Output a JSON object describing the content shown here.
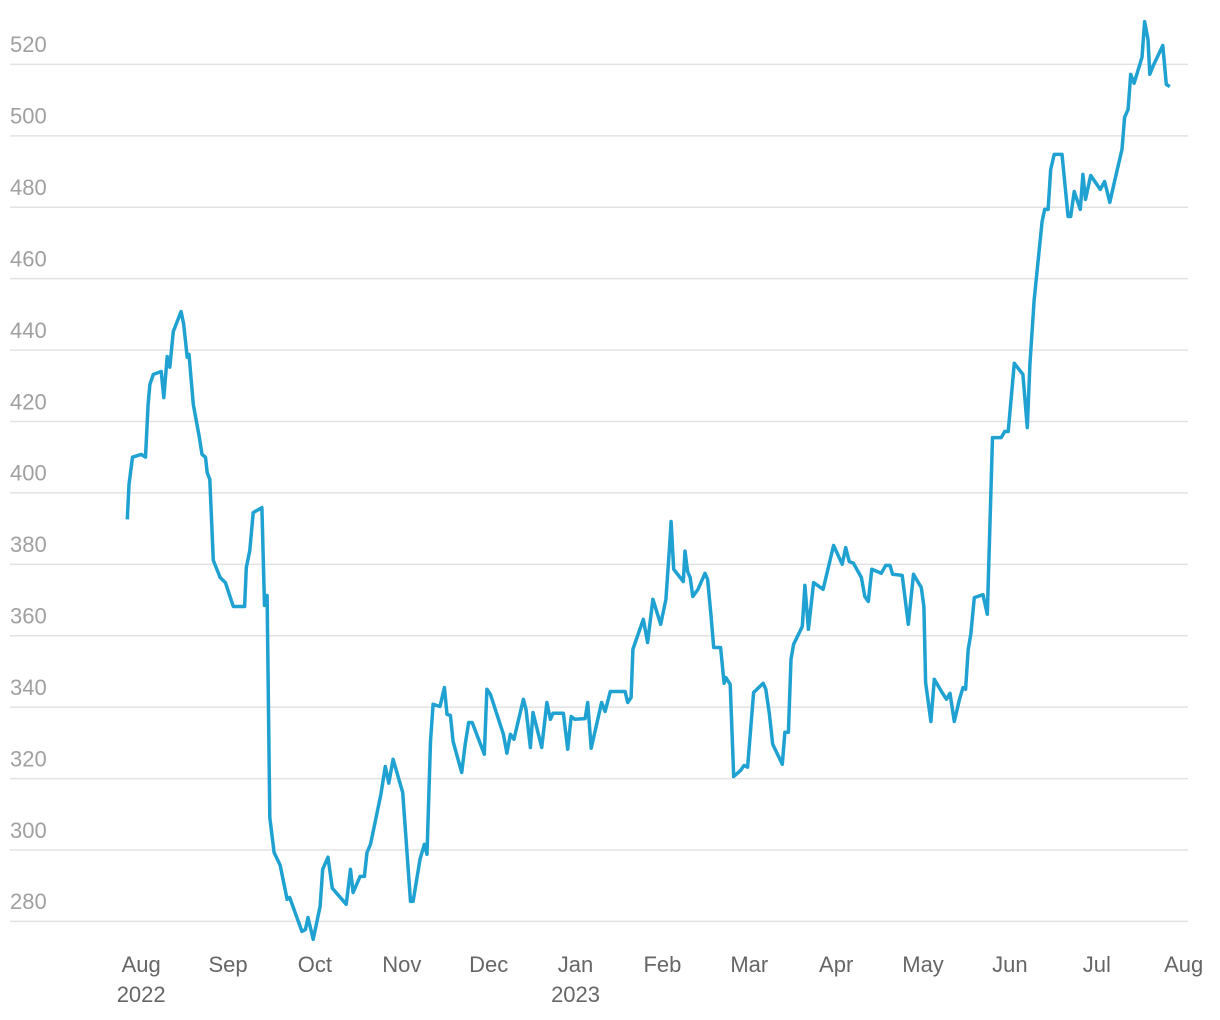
{
  "chart_data": {
    "type": "line",
    "x": [
      -0.16,
      -0.14,
      -0.1,
      0,
      0.05,
      0.08,
      0.1,
      0.14,
      0.23,
      0.26,
      0.3,
      0.33,
      0.37,
      0.46,
      0.49,
      0.53,
      0.55,
      0.6,
      0.67,
      0.7,
      0.74,
      0.76,
      0.79,
      0.83,
      0.91,
      0.97,
      1.06,
      1.19,
      1.21,
      1.25,
      1.29,
      1.39,
      1.42,
      1.45,
      1.48,
      1.53,
      1.6,
      1.68,
      1.71,
      1.85,
      1.89,
      1.92,
      1.98,
      2.06,
      2.09,
      2.15,
      2.2,
      2.31,
      2.36,
      2.41,
      2.44,
      2.52,
      2.57,
      2.6,
      2.64,
      2.68,
      2.76,
      2.81,
      2.85,
      2.9,
      3.01,
      3.1,
      3.13,
      3.21,
      3.26,
      3.29,
      3.33,
      3.36,
      3.44,
      3.49,
      3.52,
      3.56,
      3.59,
      3.69,
      3.73,
      3.77,
      3.81,
      3.95,
      3.98,
      4.02,
      4.17,
      4.21,
      4.25,
      4.29,
      4.4,
      4.43,
      4.48,
      4.51,
      4.61,
      4.67,
      4.71,
      4.74,
      4.86,
      4.91,
      4.95,
      4.99,
      5.11,
      5.14,
      5.18,
      5.3,
      5.34,
      5.4,
      5.57,
      5.6,
      5.64,
      5.66,
      5.78,
      5.83,
      5.89,
      5.98,
      6.04,
      6.08,
      6.1,
      6.13,
      6.24,
      6.26,
      6.29,
      6.32,
      6.35,
      6.41,
      6.49,
      6.52,
      6.56,
      6.59,
      6.67,
      6.71,
      6.73,
      6.78,
      6.82,
      6.9,
      6.94,
      6.98,
      7.05,
      7.16,
      7.19,
      7.23,
      7.27,
      7.38,
      7.41,
      7.45,
      7.48,
      7.51,
      7.61,
      7.64,
      7.68,
      7.74,
      7.85,
      7.91,
      7.97,
      8.07,
      8.11,
      8.15,
      8.2,
      8.29,
      8.33,
      8.37,
      8.41,
      8.52,
      8.57,
      8.62,
      8.65,
      8.76,
      8.83,
      8.89,
      8.98,
      9.01,
      9.03,
      9.09,
      9.13,
      9.22,
      9.27,
      9.31,
      9.36,
      9.42,
      9.46,
      9.49,
      9.52,
      9.55,
      9.59,
      9.69,
      9.74,
      9.8,
      9.9,
      9.94,
      9.98,
      10.05,
      10.15,
      10.2,
      10.23,
      10.28,
      10.37,
      10.4,
      10.44,
      10.47,
      10.51,
      10.6,
      10.67,
      10.7,
      10.74,
      10.81,
      10.84,
      10.87,
      10.93,
      11.04,
      11.09,
      11.15,
      11.21,
      11.29,
      11.32,
      11.36,
      11.39,
      11.43,
      11.52,
      11.55,
      11.59,
      11.61,
      11.65,
      11.76,
      11.8,
      11.84
    ],
    "series": [
      {
        "color": "#1fa2d1",
        "values": [
          392.6,
          402.4,
          410,
          410.8,
          410,
          424.8,
          430.4,
          433.2,
          434,
          426.7,
          438.2,
          435.2,
          445.2,
          450.8,
          447.2,
          438,
          438.8,
          424.8,
          415.5,
          410.8,
          410,
          405.7,
          403.8,
          381.1,
          376.3,
          374.9,
          368.2,
          368.2,
          379.1,
          383.9,
          394.5,
          395.9,
          368.5,
          371.3,
          309.1,
          299.3,
          295.7,
          286.2,
          286.7,
          277.2,
          277.7,
          281.1,
          275,
          284.2,
          294.6,
          298,
          289.3,
          286.2,
          284.8,
          294.6,
          288.1,
          292.6,
          292.6,
          299.3,
          301.6,
          306.3,
          315.6,
          323.4,
          318.7,
          325.4,
          316.1,
          285.6,
          285.6,
          297.4,
          301.6,
          298.8,
          330.4,
          340.8,
          340.2,
          345.5,
          338,
          337.7,
          330.4,
          321.7,
          329.6,
          335.7,
          335.7,
          326.8,
          345,
          343.6,
          332.4,
          327.1,
          332.4,
          331,
          342.2,
          339.4,
          328.7,
          338.5,
          328.7,
          341.3,
          336.6,
          338.3,
          338.3,
          328.2,
          337.4,
          336.6,
          336.8,
          341.3,
          328.5,
          341.3,
          338.8,
          344.4,
          344.4,
          341.3,
          342.7,
          356.2,
          364.6,
          358.1,
          370.2,
          363.2,
          370.2,
          384.2,
          392,
          378.6,
          375.2,
          383.7,
          378,
          376.3,
          371,
          373,
          377.5,
          375.8,
          365.4,
          356.7,
          356.7,
          346.7,
          348.3,
          346.4,
          320.6,
          322.3,
          323.7,
          323.2,
          344.1,
          346.7,
          345,
          338.3,
          329.6,
          324,
          333,
          333,
          353.4,
          357.6,
          362.6,
          374.1,
          361.8,
          374.9,
          373,
          379.1,
          385.3,
          380,
          384.7,
          380.8,
          380.3,
          376.3,
          371,
          369.6,
          378.6,
          377.5,
          379.7,
          379.7,
          377.2,
          376.9,
          363.2,
          377.2,
          373.5,
          368.2,
          346.9,
          336,
          347.8,
          344.1,
          342.2,
          343.9,
          336,
          342.2,
          345.5,
          345,
          356.2,
          360.4,
          370.7,
          371.5,
          366,
          415.5,
          415.5,
          417.2,
          417.2,
          436.3,
          433.2,
          418.3,
          436,
          454.2,
          476,
          479.4,
          479.4,
          490.6,
          494.8,
          494.8,
          477.4,
          477.4,
          484.4,
          479.4,
          489.2,
          482.2,
          488.9,
          485,
          487.2,
          481.4,
          487.8,
          496.2,
          505.2,
          507.4,
          517.2,
          514.7,
          522,
          532,
          527,
          517.2,
          519.7,
          525.3,
          514.4,
          513.8
        ]
      }
    ],
    "xlim": [
      -1.51,
      12.05
    ],
    "xticks": [
      {
        "value": 0,
        "label": "Aug"
      },
      {
        "value": 1,
        "label": "Sep"
      },
      {
        "value": 2,
        "label": "Oct"
      },
      {
        "value": 3,
        "label": "Nov"
      },
      {
        "value": 4,
        "label": "Dec"
      },
      {
        "value": 5,
        "label": "Jan"
      },
      {
        "value": 6,
        "label": "Feb"
      },
      {
        "value": 7,
        "label": "Mar"
      },
      {
        "value": 8,
        "label": "Apr"
      },
      {
        "value": 9,
        "label": "May"
      },
      {
        "value": 10,
        "label": "Jun"
      },
      {
        "value": 11,
        "label": "Jul"
      },
      {
        "value": 12,
        "label": "Aug"
      }
    ],
    "x_year_labels": [
      {
        "value": 0,
        "label": "2022"
      },
      {
        "value": 5,
        "label": "2023"
      }
    ],
    "ylim": [
      272,
      533
    ],
    "yticks": [
      280,
      300,
      320,
      340,
      360,
      380,
      400,
      420,
      440,
      460,
      480,
      500,
      520
    ],
    "grid": true
  }
}
